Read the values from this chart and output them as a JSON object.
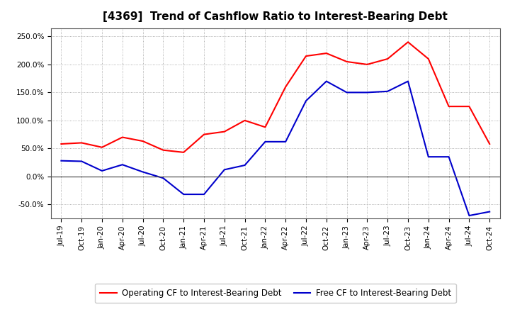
{
  "title": "[4369]  Trend of Cashflow Ratio to Interest-Bearing Debt",
  "x_labels": [
    "Jul-19",
    "Oct-19",
    "Jan-20",
    "Apr-20",
    "Jul-20",
    "Oct-20",
    "Jan-21",
    "Apr-21",
    "Jul-21",
    "Oct-21",
    "Jan-22",
    "Apr-22",
    "Jul-22",
    "Oct-22",
    "Jan-23",
    "Apr-23",
    "Jul-23",
    "Oct-23",
    "Jan-24",
    "Apr-24",
    "Jul-24",
    "Oct-24"
  ],
  "operating_cf": [
    0.58,
    0.6,
    0.52,
    0.7,
    0.63,
    0.47,
    0.43,
    0.75,
    0.8,
    1.0,
    0.88,
    1.6,
    2.15,
    2.2,
    2.05,
    2.0,
    2.1,
    2.4,
    2.1,
    1.25,
    1.25,
    0.58
  ],
  "free_cf": [
    0.28,
    0.27,
    0.1,
    0.21,
    0.08,
    -0.03,
    -0.32,
    -0.32,
    0.12,
    0.2,
    0.62,
    0.62,
    1.35,
    1.7,
    1.5,
    1.5,
    1.52,
    1.7,
    0.35,
    0.35,
    -0.7,
    -0.63
  ],
  "operating_color": "#FF0000",
  "free_color": "#0000CC",
  "ylim_low": -0.75,
  "ylim_high": 2.65,
  "yticks": [
    -0.5,
    0.0,
    0.5,
    1.0,
    1.5,
    2.0,
    2.5
  ],
  "ytick_labels": [
    "-50.0%",
    "0.0%",
    "50.0%",
    "100.0%",
    "150.0%",
    "200.0%",
    "250.0%"
  ],
  "bg_color": "#FFFFFF",
  "grid_color": "#999999",
  "legend_operating": "Operating CF to Interest-Bearing Debt",
  "legend_free": "Free CF to Interest-Bearing Debt",
  "title_fontsize": 11,
  "tick_fontsize": 7.5,
  "line_width": 1.5
}
